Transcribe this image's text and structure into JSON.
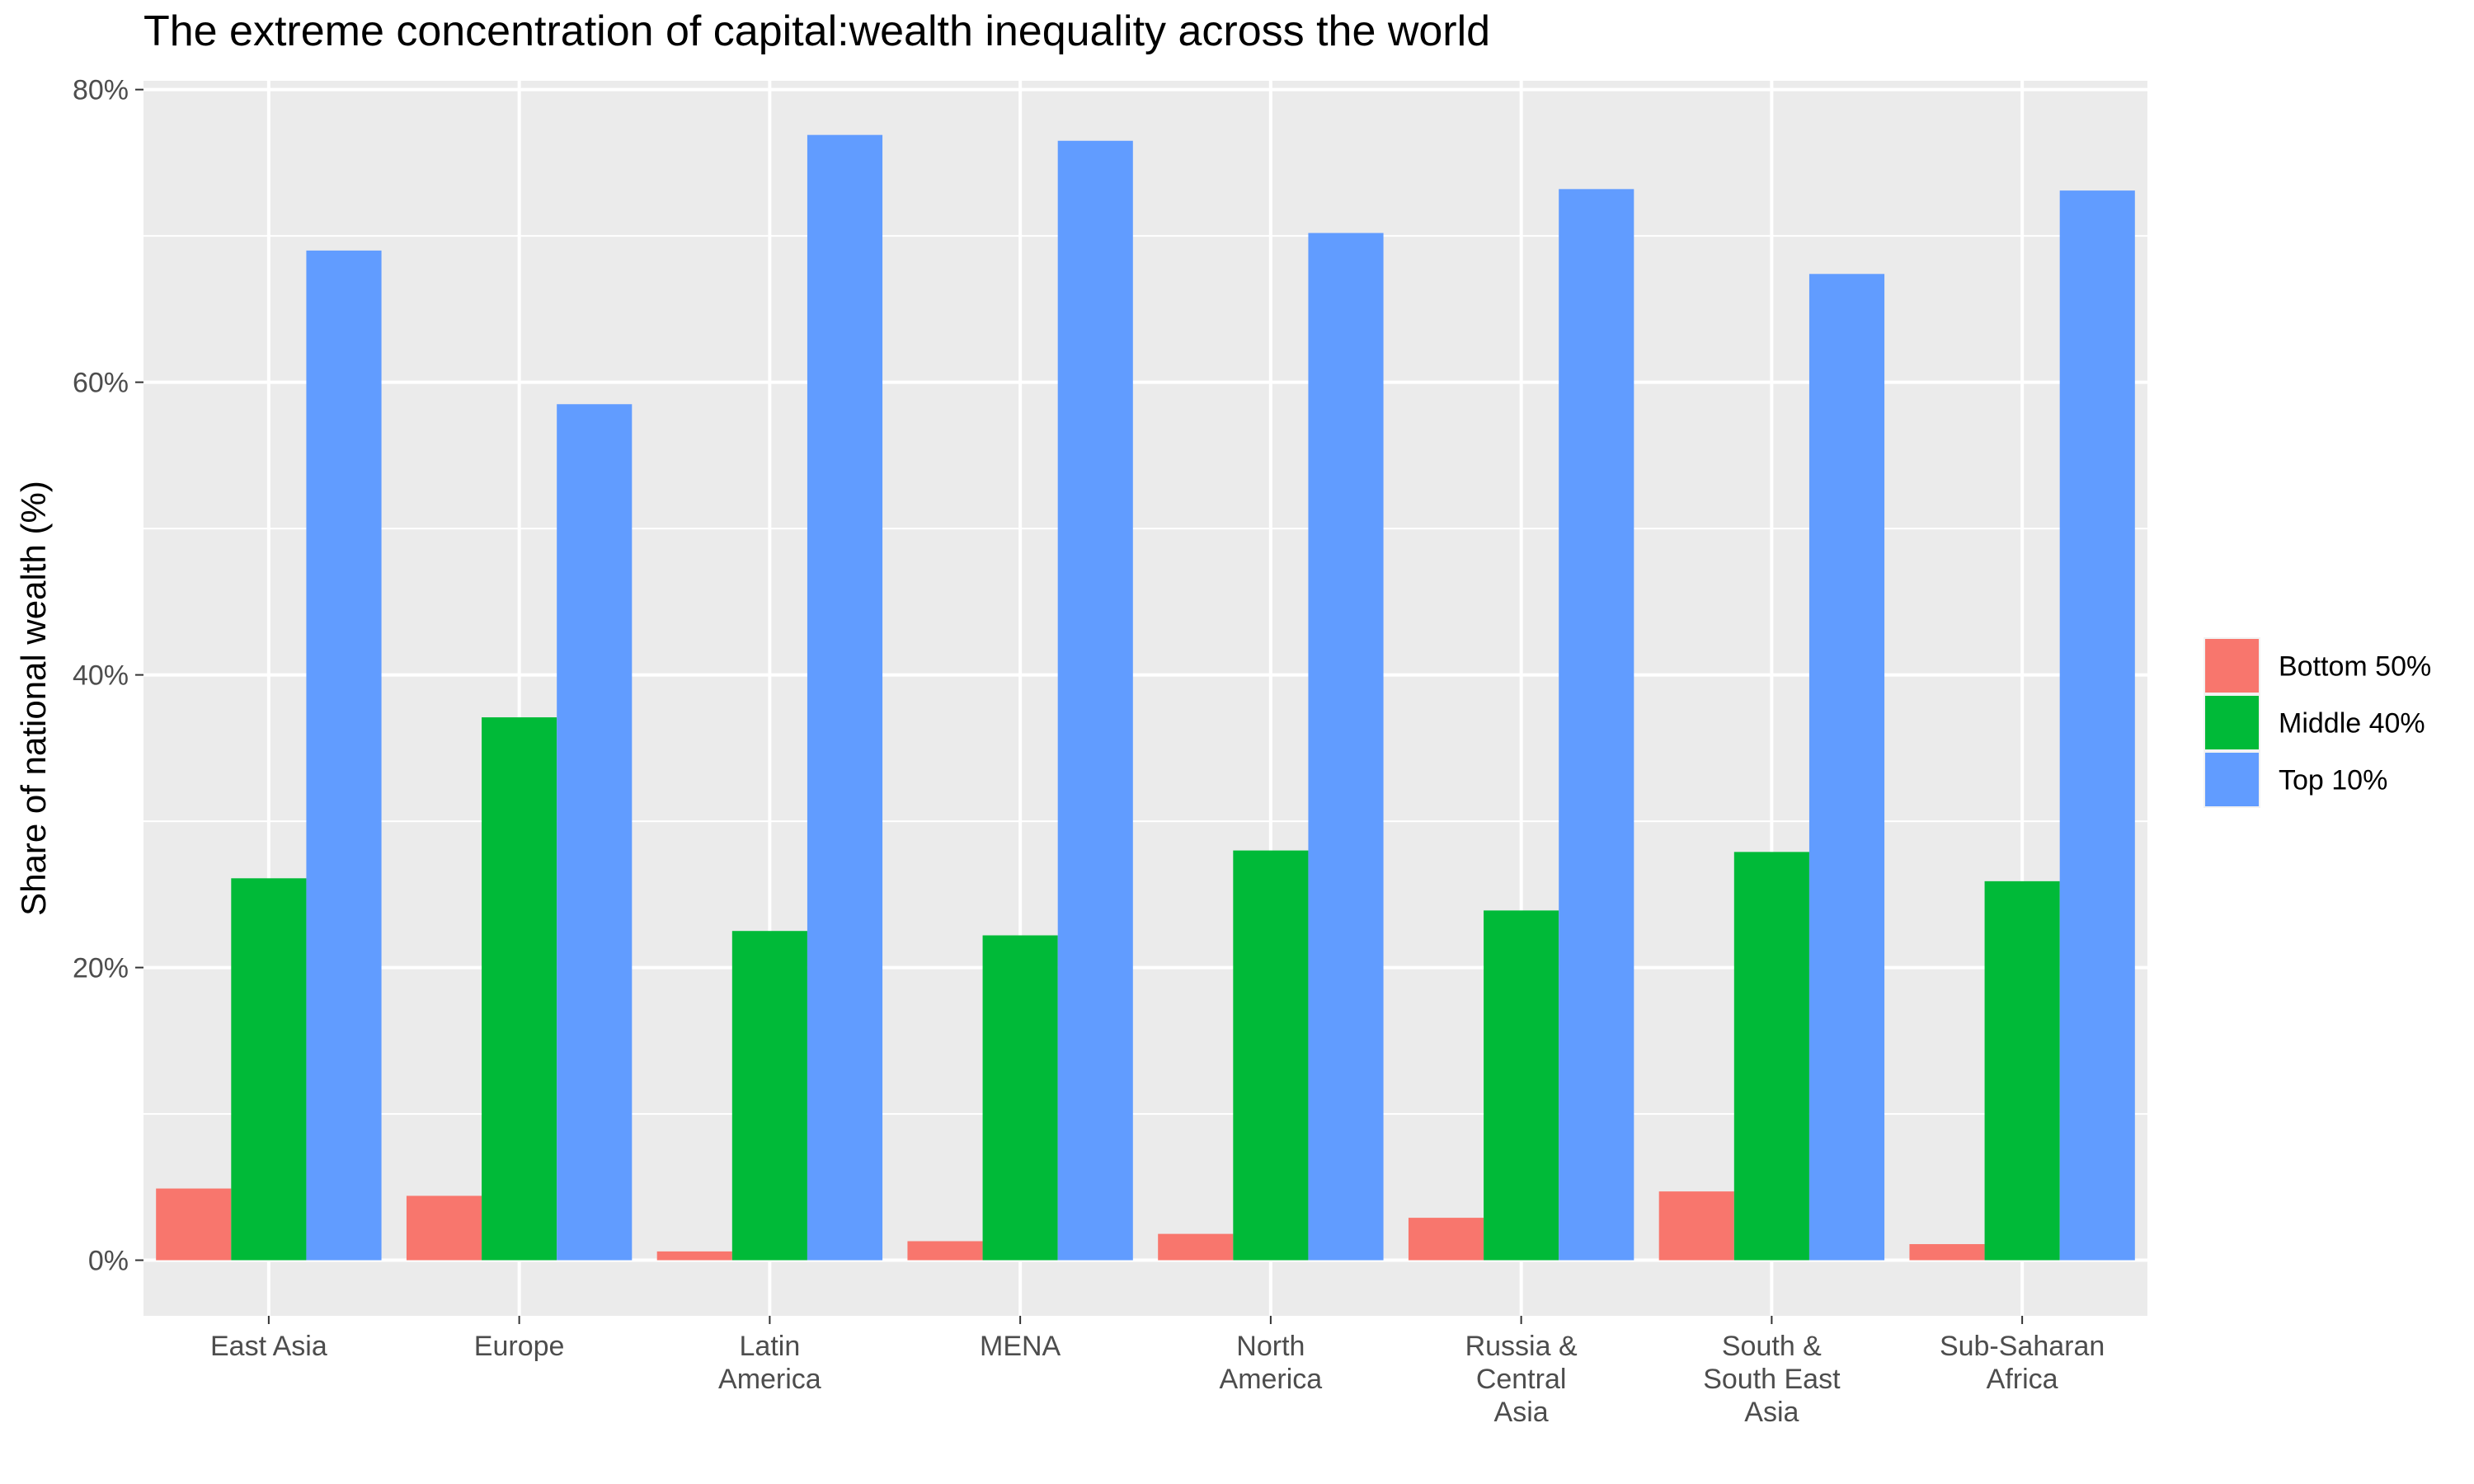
{
  "chart_data": {
    "type": "bar",
    "title": "The extreme concentration of capital:wealth inequality across the world",
    "xlabel": "",
    "ylabel": "Share of national wealth (%)",
    "ylim": [
      -3.8,
      80.6
    ],
    "y_ticks": [
      0,
      20,
      40,
      60,
      80
    ],
    "y_tick_labels": [
      "0%",
      "20%",
      "40%",
      "60%",
      "80%"
    ],
    "grid": true,
    "legend_position": "right",
    "categories": [
      [
        "East Asia"
      ],
      [
        "Europe"
      ],
      [
        "Latin",
        "America"
      ],
      [
        "MENA"
      ],
      [
        "North",
        "America"
      ],
      [
        "Russia &",
        "Central",
        "Asia"
      ],
      [
        "South &",
        "South East",
        "Asia"
      ],
      [
        "Sub-Saharan",
        "Africa"
      ]
    ],
    "series": [
      {
        "name": "Bottom 50%",
        "color": "#F8766D",
        "values": [
          4.9,
          4.4,
          0.6,
          1.3,
          1.8,
          2.9,
          4.7,
          1.1
        ]
      },
      {
        "name": "Middle 40%",
        "color": "#00BA38",
        "values": [
          26.1,
          37.1,
          22.5,
          22.2,
          28.0,
          23.9,
          27.9,
          25.9
        ]
      },
      {
        "name": "Top 10%",
        "color": "#619CFF",
        "values": [
          69.0,
          58.5,
          76.9,
          76.5,
          70.2,
          73.2,
          67.4,
          73.1
        ]
      }
    ]
  }
}
